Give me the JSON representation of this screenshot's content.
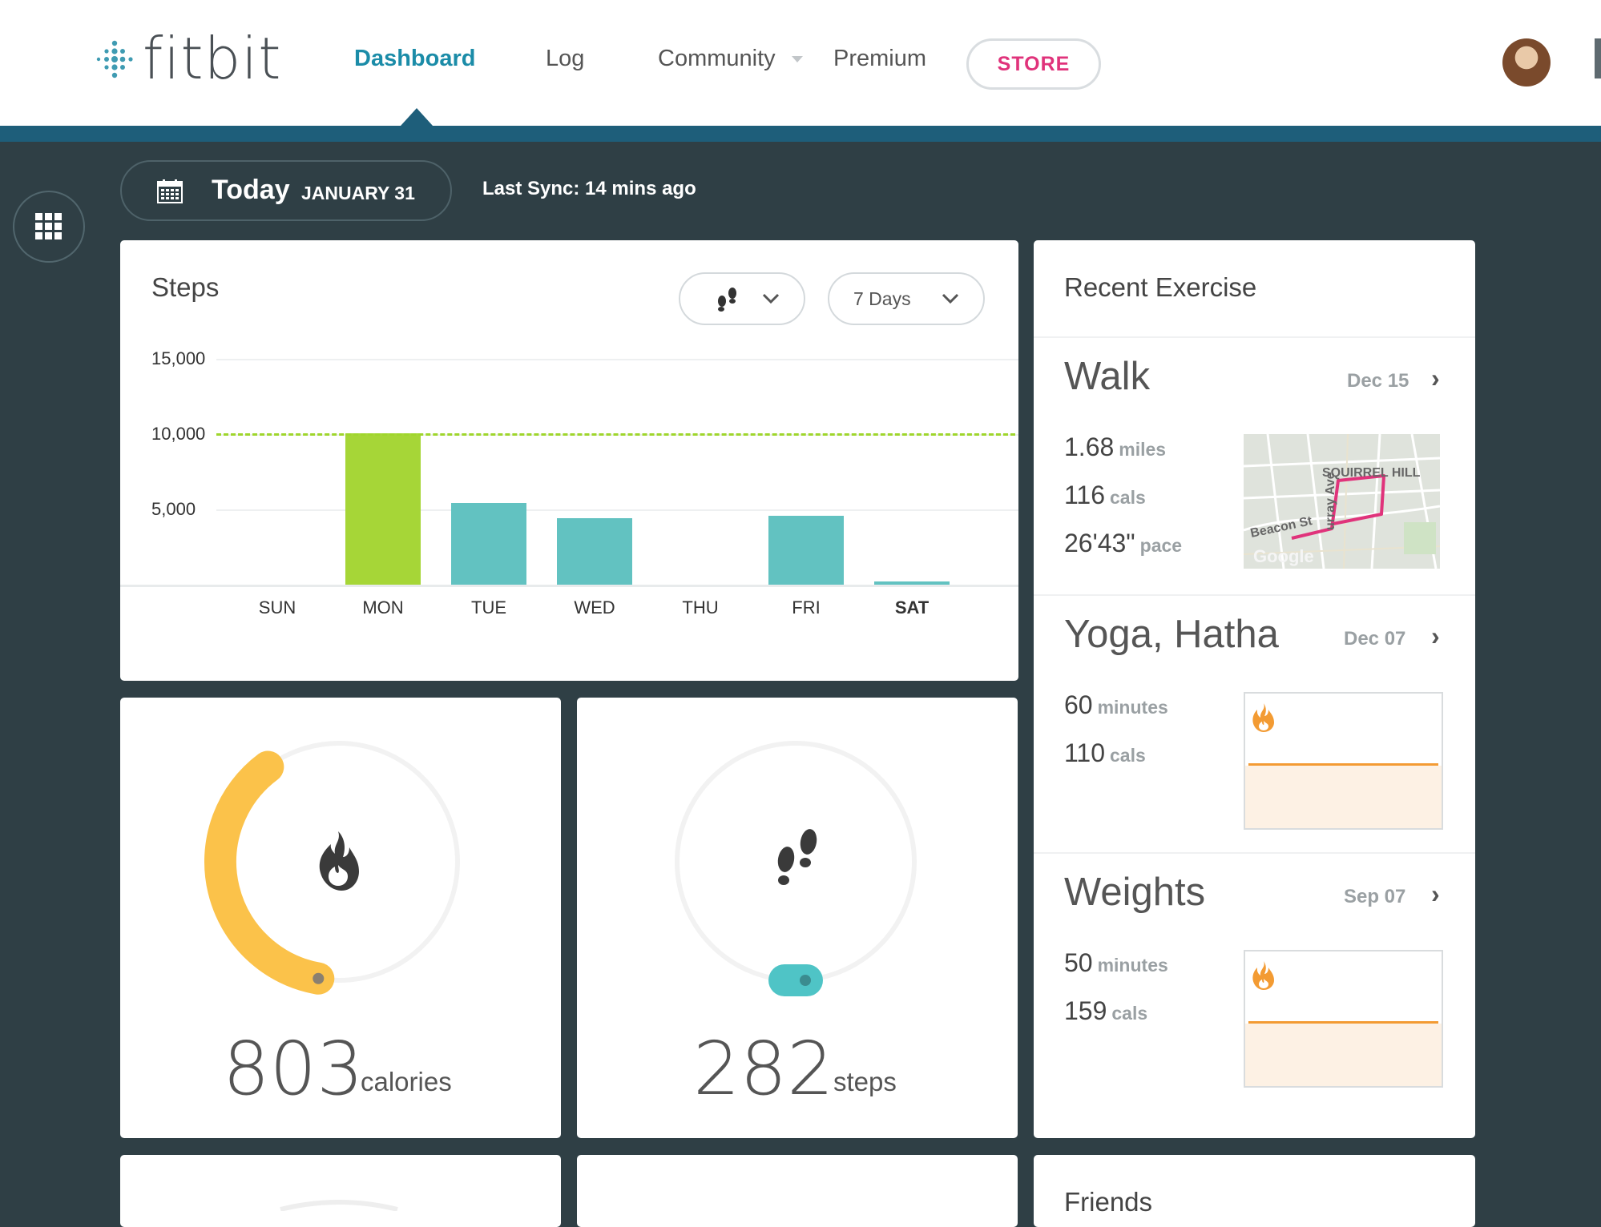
{
  "header": {
    "logo_text": "fitbit",
    "nav": {
      "dashboard": "Dashboard",
      "log": "Log",
      "community": "Community",
      "premium": "Premium",
      "store": "STORE"
    }
  },
  "date_bar": {
    "today": "Today",
    "month_day": "JANUARY 31",
    "sync": "Last Sync: 14 mins ago"
  },
  "steps_card": {
    "title": "Steps",
    "range_dropdown": "7 Days",
    "metric_icon": "footsteps-icon"
  },
  "chart_data": {
    "type": "bar",
    "title": "Steps",
    "categories": [
      "SUN",
      "MON",
      "TUE",
      "WED",
      "THU",
      "FRI",
      "SAT"
    ],
    "values": [
      0,
      10050,
      5450,
      4400,
      0,
      4550,
      200
    ],
    "y_ticks": [
      "15,000",
      "10,000",
      "5,000"
    ],
    "ylim": [
      0,
      15000
    ],
    "goal": 10000,
    "goal_color": "#9fd62c",
    "goal_met_color": "#a6d637",
    "bar_color": "#62c2c1",
    "highlight_category": "SAT"
  },
  "calories_card": {
    "value": "803",
    "unit": "calories",
    "progress_fraction": 0.37,
    "color": "#fbc24a",
    "icon": "flame-icon"
  },
  "steps_summary_card": {
    "value": "282",
    "unit": "steps",
    "progress_fraction": 0.02,
    "color": "#4fc4c6",
    "icon": "footsteps-icon"
  },
  "recent_exercise": {
    "title": "Recent Exercise",
    "items": [
      {
        "name": "Walk",
        "date": "Dec 15",
        "stats": [
          {
            "value": "1.68",
            "unit": "miles"
          },
          {
            "value": "116",
            "unit": "cals"
          },
          {
            "value": "26'43\"",
            "unit": "pace"
          }
        ],
        "map_labels": [
          "SQUIRREL HILL",
          "Beacon St",
          "Google",
          "urray Ave"
        ]
      },
      {
        "name": "Yoga, Hatha",
        "date": "Dec 07",
        "stats": [
          {
            "value": "60",
            "unit": "minutes"
          },
          {
            "value": "110",
            "unit": "cals"
          }
        ]
      },
      {
        "name": "Weights",
        "date": "Sep 07",
        "stats": [
          {
            "value": "50",
            "unit": "minutes"
          },
          {
            "value": "159",
            "unit": "cals"
          }
        ]
      }
    ]
  },
  "friends_card": {
    "title": "Friends"
  }
}
